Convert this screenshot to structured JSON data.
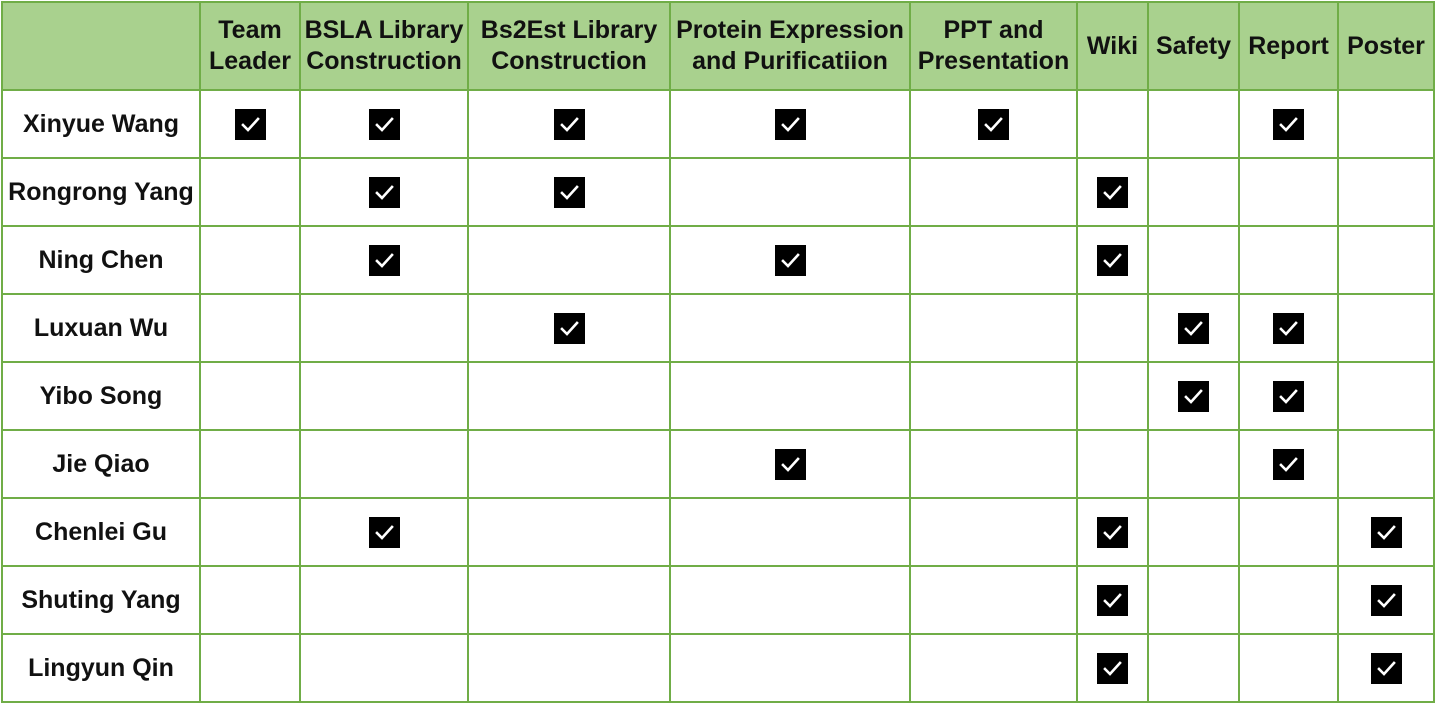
{
  "table": {
    "corner": "",
    "columns": [
      {
        "id": "team-leader",
        "lines": [
          "Team",
          "Leader"
        ]
      },
      {
        "id": "bsla-library-construction",
        "lines": [
          "BSLA Library",
          "Construction"
        ]
      },
      {
        "id": "bs2est-library-construction",
        "lines": [
          "Bs2Est Library",
          "Construction"
        ]
      },
      {
        "id": "protein-expression-and-purification",
        "lines": [
          "Protein Expression",
          "and Purificatiion"
        ]
      },
      {
        "id": "ppt-and-presentation",
        "lines": [
          "PPT  and",
          "Presentation"
        ]
      },
      {
        "id": "wiki",
        "lines": [
          "Wiki"
        ]
      },
      {
        "id": "safety",
        "lines": [
          "Safety"
        ]
      },
      {
        "id": "report",
        "lines": [
          "Report"
        ]
      },
      {
        "id": "poster",
        "lines": [
          "Poster"
        ]
      }
    ],
    "rows": [
      {
        "name": "Xinyue Wang",
        "checks": [
          true,
          true,
          true,
          true,
          true,
          false,
          false,
          true,
          false
        ]
      },
      {
        "name": "Rongrong Yang",
        "checks": [
          false,
          true,
          true,
          false,
          false,
          true,
          false,
          false,
          false
        ]
      },
      {
        "name": "Ning Chen",
        "checks": [
          false,
          true,
          false,
          true,
          false,
          true,
          false,
          false,
          false
        ]
      },
      {
        "name": "Luxuan Wu",
        "checks": [
          false,
          false,
          true,
          false,
          false,
          false,
          true,
          true,
          false
        ]
      },
      {
        "name": "Yibo Song",
        "checks": [
          false,
          false,
          false,
          false,
          false,
          false,
          true,
          true,
          false
        ]
      },
      {
        "name": "Jie Qiao",
        "checks": [
          false,
          false,
          false,
          true,
          false,
          false,
          false,
          true,
          false
        ]
      },
      {
        "name": "Chenlei Gu",
        "checks": [
          false,
          true,
          false,
          false,
          false,
          true,
          false,
          false,
          true
        ]
      },
      {
        "name": "Shuting Yang",
        "checks": [
          false,
          false,
          false,
          false,
          false,
          true,
          false,
          false,
          true
        ]
      },
      {
        "name": "Lingyun Qin",
        "checks": [
          false,
          false,
          false,
          false,
          false,
          true,
          false,
          false,
          true
        ]
      }
    ]
  },
  "colors": {
    "header_bg": "#a9d18e",
    "border": "#70ad47",
    "check_bg": "#000000",
    "check_mark": "#ffffff"
  },
  "icons": {
    "checked": "checkbox-checked-icon"
  }
}
